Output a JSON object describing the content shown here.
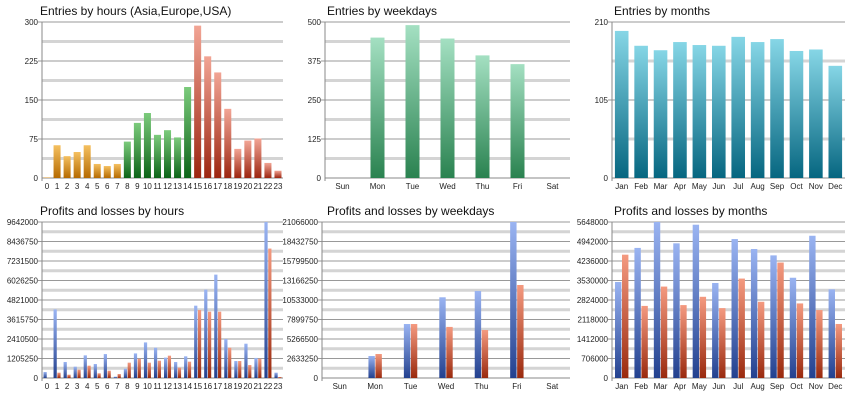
{
  "colors": {
    "orange": [
      "#f5c060",
      "#b56a00"
    ],
    "green": [
      "#7ccb7c",
      "#0c6418"
    ],
    "red": [
      "#f2a595",
      "#9c2510"
    ],
    "mint": [
      "#a4e0c2",
      "#2a8250"
    ],
    "teal": [
      "#86d6e6",
      "#066680"
    ],
    "blue": [
      "#9ab4f2",
      "#23418f"
    ],
    "loss": [
      "#f49a80",
      "#9a2a0e"
    ]
  },
  "chart_data": [
    {
      "type": "bar",
      "title": "Entries by hours (Asia,Europe,USA)",
      "categories": [
        "0",
        "1",
        "2",
        "3",
        "4",
        "5",
        "6",
        "7",
        "8",
        "9",
        "10",
        "11",
        "12",
        "13",
        "14",
        "15",
        "16",
        "17",
        "18",
        "19",
        "20",
        "21",
        "22",
        "23"
      ],
      "values": [
        1,
        63,
        42,
        50,
        63,
        27,
        23,
        27,
        70,
        106,
        125,
        83,
        92,
        78,
        175,
        293,
        234,
        203,
        133,
        56,
        72,
        76,
        29,
        14
      ],
      "bar_colors": [
        "orange",
        "orange",
        "orange",
        "orange",
        "orange",
        "orange",
        "orange",
        "orange",
        "green",
        "green",
        "green",
        "green",
        "green",
        "green",
        "green",
        "red",
        "red",
        "red",
        "red",
        "red",
        "red",
        "red",
        "red",
        "red"
      ],
      "yticks": [
        "0",
        "75",
        "150",
        "225",
        "300"
      ],
      "ylim": [
        0,
        300
      ]
    },
    {
      "type": "bar",
      "title": "Entries by weekdays",
      "categories": [
        "Sun",
        "Mon",
        "Tue",
        "Wed",
        "Thu",
        "Fri",
        "Sat"
      ],
      "values": [
        0,
        450,
        490,
        447,
        393,
        365,
        0
      ],
      "bar_color": "mint",
      "yticks": [
        "0",
        "125",
        "250",
        "375",
        "500"
      ],
      "ylim": [
        0,
        500
      ]
    },
    {
      "type": "bar",
      "title": "Entries by months",
      "categories": [
        "Jan",
        "Feb",
        "Mar",
        "Apr",
        "May",
        "Jun",
        "Jul",
        "Aug",
        "Sep",
        "Oct",
        "Nov",
        "Dec"
      ],
      "values": [
        198,
        178,
        172,
        183,
        179,
        178,
        190,
        183,
        187,
        171,
        173,
        151
      ],
      "bar_color": "teal",
      "yticks": [
        "0",
        "105",
        "210"
      ],
      "ylim": [
        0,
        210
      ]
    },
    {
      "type": "bar",
      "title": "Profits and losses by hours",
      "categories": [
        "0",
        "1",
        "2",
        "3",
        "4",
        "5",
        "6",
        "7",
        "8",
        "9",
        "10",
        "11",
        "12",
        "13",
        "14",
        "15",
        "16",
        "17",
        "18",
        "19",
        "20",
        "21",
        "22",
        "23"
      ],
      "series": [
        {
          "color": "blue",
          "values": [
            370000,
            4240000,
            990000,
            700000,
            1400000,
            865000,
            1480000,
            82000,
            577000,
            1520000,
            2200000,
            1870000,
            1260000,
            990000,
            1340000,
            4470000,
            5460000,
            6390000,
            2410000,
            1050000,
            2120000,
            1240000,
            9642000,
            330000
          ]
        },
        {
          "color": "loss",
          "values": [
            0,
            330000,
            206000,
            515000,
            762000,
            290000,
            453000,
            247000,
            948000,
            1190000,
            948000,
            1070000,
            1380000,
            639000,
            1010000,
            4200000,
            4100000,
            4100000,
            1870000,
            1050000,
            800000,
            1190000,
            8000000,
            62000
          ]
        }
      ],
      "yticks": [
        "0",
        "1205250",
        "2410500",
        "3615750",
        "4821000",
        "6026250",
        "7231500",
        "8436750",
        "9642000"
      ],
      "ylim": [
        0,
        9642000
      ]
    },
    {
      "type": "bar",
      "title": "Profits and losses by weekdays",
      "categories": [
        "Sun",
        "Mon",
        "Tue",
        "Wed",
        "Thu",
        "Fri",
        "Sat"
      ],
      "series": [
        {
          "color": "blue",
          "values": [
            0,
            2970000,
            7290000,
            10900000,
            11750000,
            21066000,
            0
          ]
        },
        {
          "color": "loss",
          "values": [
            0,
            3240000,
            7290000,
            6900000,
            6480000,
            12560000,
            0
          ]
        }
      ],
      "yticks": [
        "0",
        "2633250",
        "5266500",
        "7899750",
        "10533000",
        "13166250",
        "15799500",
        "18432750",
        "21066000"
      ],
      "ylim": [
        0,
        21066000
      ]
    },
    {
      "type": "bar",
      "title": "Profits and losses by months",
      "categories": [
        "Jan",
        "Feb",
        "Mar",
        "Apr",
        "May",
        "Jun",
        "Jul",
        "Aug",
        "Sep",
        "Oct",
        "Nov",
        "Dec"
      ],
      "series": [
        {
          "color": "blue",
          "values": [
            3476000,
            4710000,
            5648000,
            4876000,
            5550000,
            3440000,
            5030000,
            4670000,
            4440000,
            3630000,
            5150000,
            3210000
          ]
        },
        {
          "color": "loss",
          "values": [
            4465000,
            2610000,
            3310000,
            2640000,
            2940000,
            2530000,
            3600000,
            2760000,
            4180000,
            2700000,
            2460000,
            1956000
          ]
        }
      ],
      "yticks": [
        "0",
        "706000",
        "1412000",
        "2118000",
        "2824000",
        "3530000",
        "4236000",
        "4942000",
        "5648000"
      ],
      "ylim": [
        0,
        5648000
      ]
    }
  ]
}
